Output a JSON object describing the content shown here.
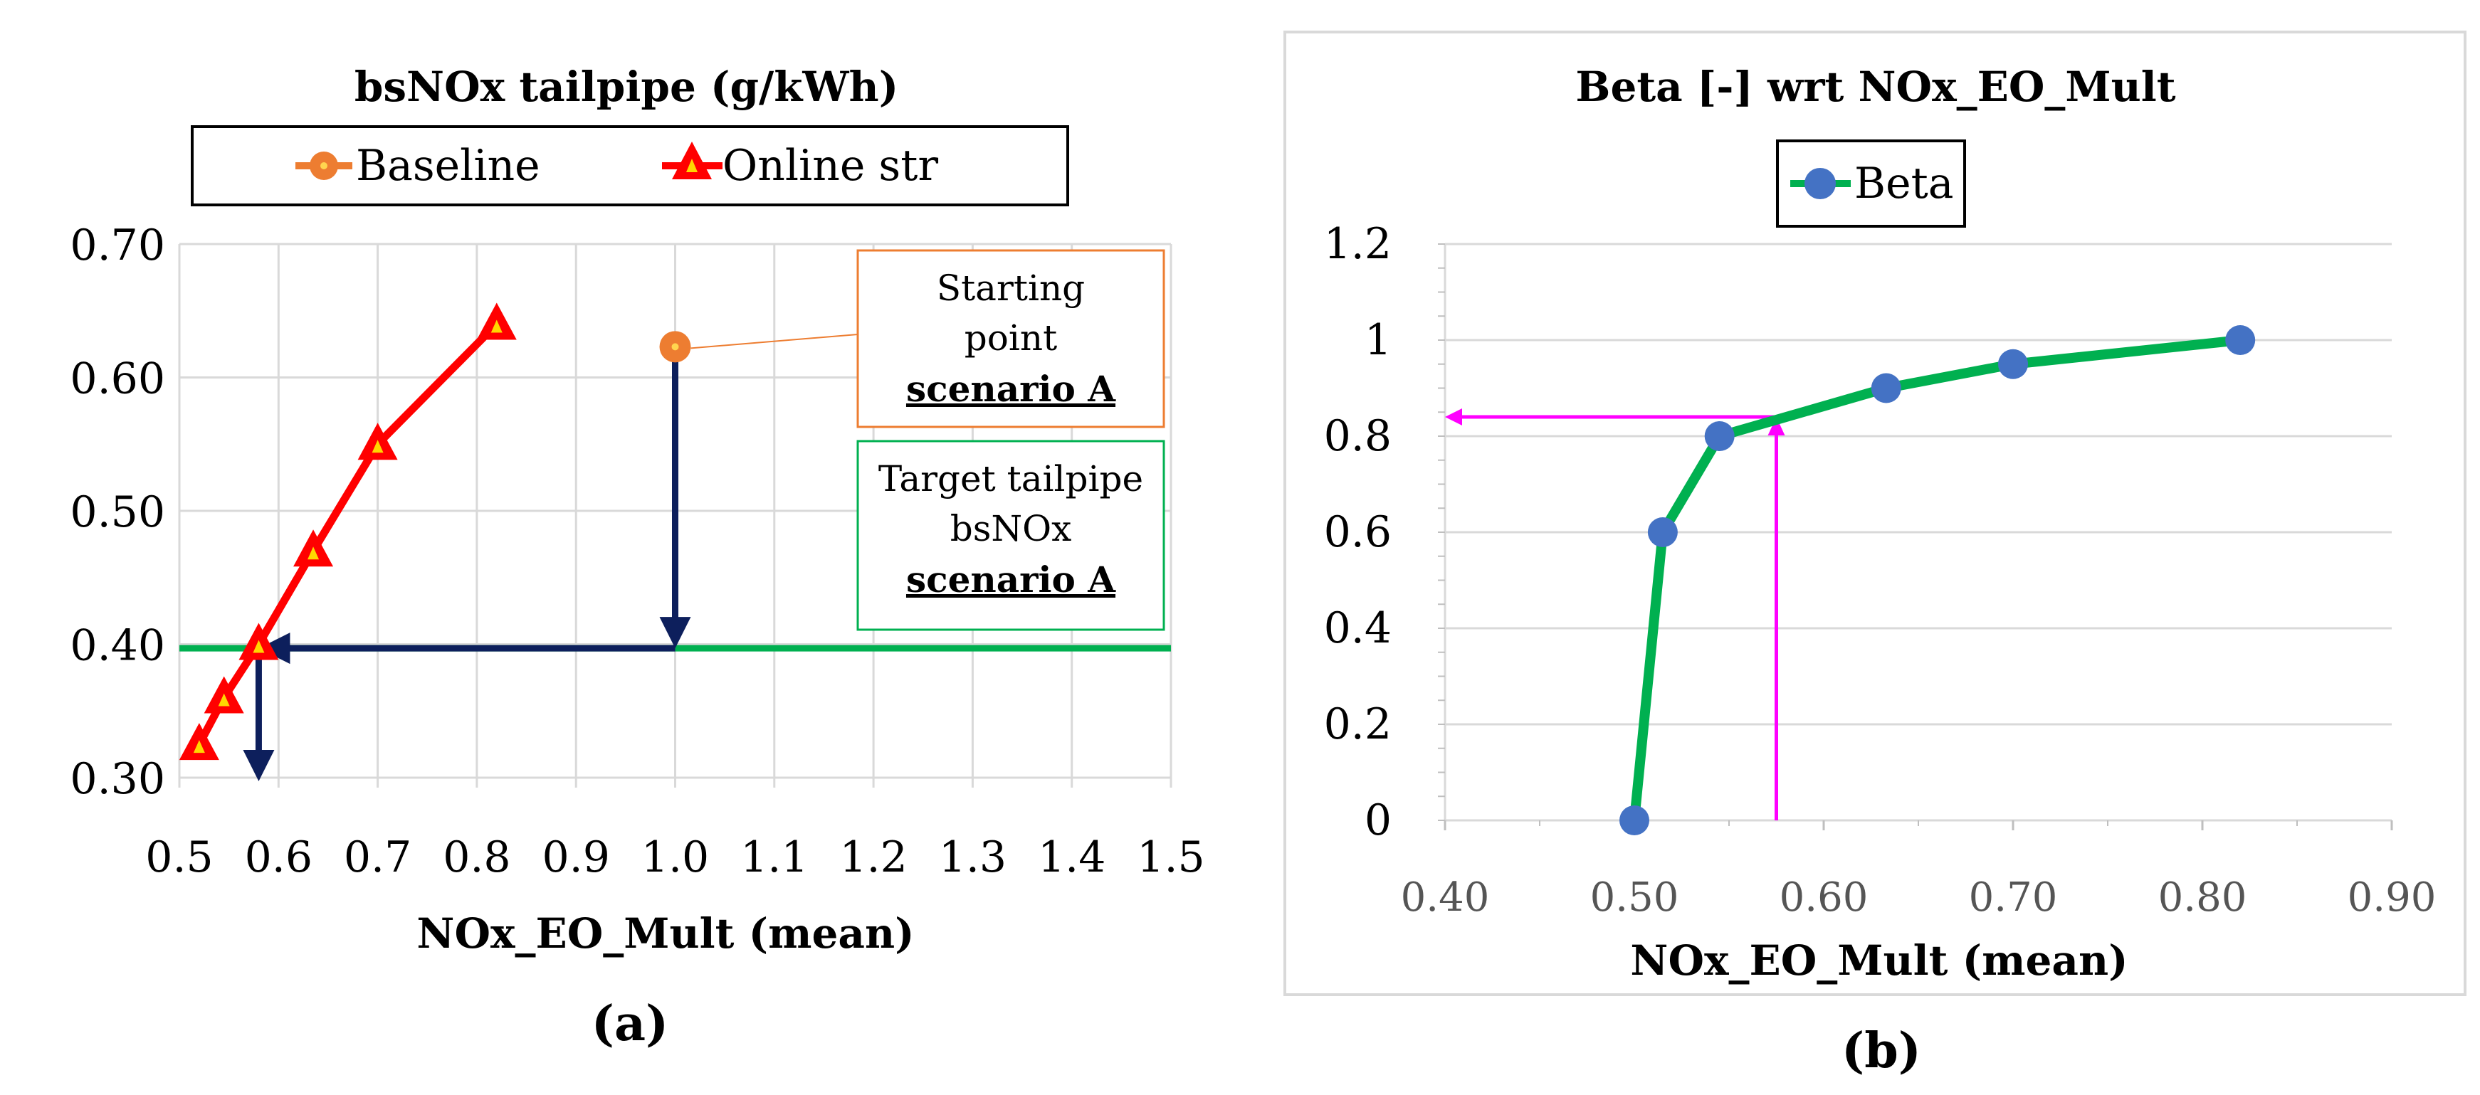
{
  "chart_data": [
    {
      "type": "line",
      "panel_label": "(a)",
      "title": "bsNOx tailpipe (g/kWh)",
      "xlabel": "NOx_EO_Mult (mean)",
      "ylabel": "",
      "xlim": [
        0.5,
        1.5
      ],
      "ylim": [
        0.3,
        0.7
      ],
      "x_ticks": [
        "0.5",
        "0.6",
        "0.7",
        "0.8",
        "0.9",
        "1.0",
        "1.1",
        "1.2",
        "1.3",
        "1.4",
        "1.5"
      ],
      "y_ticks": [
        "0.30",
        "0.40",
        "0.50",
        "0.60",
        "0.70"
      ],
      "grid": true,
      "legend": [
        {
          "name": "Baseline",
          "color": "#ED7D31",
          "marker": "circle"
        },
        {
          "name": "Online str",
          "color": "#FF0000",
          "marker": "triangle"
        }
      ],
      "series": [
        {
          "name": "Online str",
          "color": "#FF0000",
          "x": [
            0.52,
            0.545,
            0.58,
            0.635,
            0.7,
            0.82
          ],
          "y": [
            0.325,
            0.36,
            0.4,
            0.47,
            0.55,
            0.64
          ]
        },
        {
          "name": "Baseline",
          "color": "#ED7D31",
          "x": [
            1.0
          ],
          "y": [
            0.623
          ]
        },
        {
          "name": "Target tailpipe",
          "color": "#00B050",
          "x": [
            0.5,
            1.5
          ],
          "y": [
            0.397,
            0.397
          ]
        }
      ],
      "annotations": {
        "start_line1": "Starting",
        "start_line2": "point",
        "start_line3": "scenario A",
        "target_line1": "Target tailpipe",
        "target_line2": "bsNOx",
        "target_line3": "scenario A"
      },
      "arrow_color": "#0D1F5C",
      "arrow_path_x": [
        1.0,
        1.0,
        0.58,
        0.58
      ],
      "arrow_path_y": [
        0.62,
        0.397,
        0.397,
        0.3
      ]
    },
    {
      "type": "line",
      "panel_label": "(b)",
      "title": "Beta [-] wrt NOx_EO_Mult",
      "xlabel": "NOx_EO_Mult (mean)",
      "ylabel": "",
      "xlim": [
        0.4,
        0.9
      ],
      "ylim": [
        0,
        1.2
      ],
      "x_ticks": [
        "0.40",
        "0.50",
        "0.60",
        "0.70",
        "0.80",
        "0.90"
      ],
      "y_ticks": [
        "0",
        "0.2",
        "0.4",
        "0.6",
        "0.8",
        "1",
        "1.2"
      ],
      "grid": true,
      "legend": [
        {
          "name": "Beta",
          "color": "#4472C4",
          "marker": "circle"
        }
      ],
      "series": [
        {
          "name": "Beta",
          "color": "#00B050",
          "marker_color": "#4472C4",
          "x": [
            0.5,
            0.515,
            0.545,
            0.633,
            0.7,
            0.82
          ],
          "y": [
            0,
            0.6,
            0.8,
            0.9,
            0.95,
            1.0
          ]
        }
      ],
      "arrow_color": "#FF00FF",
      "arrow_x": 0.575,
      "arrow_y": 0.84
    }
  ]
}
